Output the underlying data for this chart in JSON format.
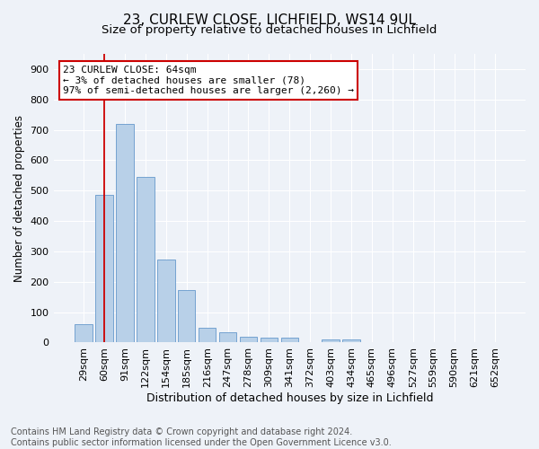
{
  "title1": "23, CURLEW CLOSE, LICHFIELD, WS14 9UL",
  "title2": "Size of property relative to detached houses in Lichfield",
  "xlabel": "Distribution of detached houses by size in Lichfield",
  "ylabel": "Number of detached properties",
  "categories": [
    "29sqm",
    "60sqm",
    "91sqm",
    "122sqm",
    "154sqm",
    "185sqm",
    "216sqm",
    "247sqm",
    "278sqm",
    "309sqm",
    "341sqm",
    "372sqm",
    "403sqm",
    "434sqm",
    "465sqm",
    "496sqm",
    "527sqm",
    "559sqm",
    "590sqm",
    "621sqm",
    "652sqm"
  ],
  "values": [
    60,
    485,
    720,
    545,
    272,
    172,
    48,
    35,
    18,
    15,
    15,
    0,
    10,
    10,
    0,
    0,
    0,
    0,
    0,
    0,
    0
  ],
  "bar_color": "#b8d0e8",
  "bar_edge_color": "#6699cc",
  "property_line_x": 1.0,
  "property_line_color": "#cc0000",
  "annotation_line1": "23 CURLEW CLOSE: 64sqm",
  "annotation_line2": "← 3% of detached houses are smaller (78)",
  "annotation_line3": "97% of semi-detached houses are larger (2,260) →",
  "annotation_box_color": "#ffffff",
  "annotation_box_edge": "#cc0000",
  "ylim": [
    0,
    950
  ],
  "yticks": [
    0,
    100,
    200,
    300,
    400,
    500,
    600,
    700,
    800,
    900
  ],
  "footer": "Contains HM Land Registry data © Crown copyright and database right 2024.\nContains public sector information licensed under the Open Government Licence v3.0.",
  "bg_color": "#eef2f8",
  "grid_color": "#ffffff",
  "title1_fontsize": 11,
  "title2_fontsize": 9.5,
  "xlabel_fontsize": 9,
  "ylabel_fontsize": 8.5,
  "tick_fontsize": 8,
  "footer_fontsize": 7,
  "annot_fontsize": 8
}
